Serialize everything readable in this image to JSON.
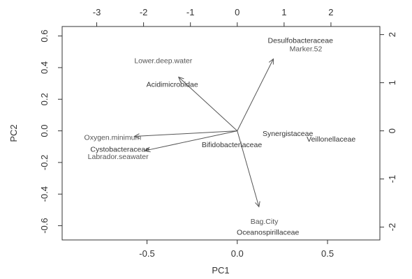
{
  "chart_data": {
    "type": "scatter",
    "subtype": "biplot",
    "xlabel": "PC1",
    "ylabel": "PC2",
    "xlim": [
      -0.97,
      0.79
    ],
    "ylim": [
      -0.69,
      0.66
    ],
    "x_ticks": [
      -0.5,
      0.0,
      0.5
    ],
    "x_tick_labels": [
      "-0.5",
      "0.0",
      "0.5"
    ],
    "y_ticks": [
      -0.6,
      -0.4,
      -0.2,
      0.0,
      0.2,
      0.4,
      0.6
    ],
    "y_tick_labels": [
      "-0.6",
      "-0.4",
      "-0.2",
      "0.0",
      "0.2",
      "0.4",
      "0.6"
    ],
    "top_ticks": [
      -3,
      -2,
      -1,
      0,
      1,
      2
    ],
    "top_tick_labels": [
      "-3",
      "-2",
      "-1",
      "0",
      "1",
      "2"
    ],
    "right_ticks": [
      -2,
      -1,
      0,
      1,
      2
    ],
    "right_tick_labels": [
      "-2",
      "-1",
      "0",
      "1",
      "2"
    ],
    "top_scale_per_pc1": 3.854,
    "right_scale_per_pc2": 3.285,
    "grid": false,
    "points": [
      {
        "label": "Desulfobacteraceae",
        "x": 0.35,
        "y": 0.575
      },
      {
        "label": "Acidimicrobidae",
        "x": -0.36,
        "y": 0.295
      },
      {
        "label": "Synergistaceae",
        "x": 0.28,
        "y": -0.015
      },
      {
        "label": "Veillonellaceae",
        "x": 0.52,
        "y": -0.05
      },
      {
        "label": "Bifidobacteriaceae",
        "x": -0.03,
        "y": -0.085
      },
      {
        "label": "Cystobacteraceae",
        "x": -0.65,
        "y": -0.115
      },
      {
        "label": "Oceanospirillaceae",
        "x": 0.17,
        "y": -0.64
      }
    ],
    "variables": [
      {
        "label": "Lower.deep.water",
        "x": -0.325,
        "y": 0.34,
        "label_x": -0.41,
        "label_y": 0.445
      },
      {
        "label": "Marker.52",
        "x": 0.2,
        "y": 0.455,
        "label_x": 0.38,
        "label_y": 0.52
      },
      {
        "label": "Oxygen.minimum",
        "x": -0.57,
        "y": -0.035,
        "label_x": -0.69,
        "label_y": -0.04
      },
      {
        "label": "Labrador.seawater",
        "x": -0.51,
        "y": -0.125,
        "label_x": -0.66,
        "label_y": -0.16
      },
      {
        "label": "Bag.City",
        "x": 0.12,
        "y": -0.48,
        "label_x": 0.15,
        "label_y": -0.57
      }
    ]
  }
}
